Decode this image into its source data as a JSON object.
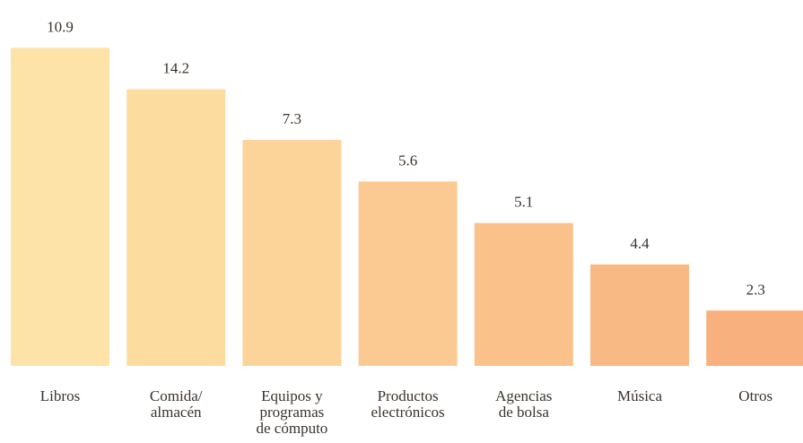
{
  "chart_data": {
    "type": "bar",
    "categories": [
      [
        "Libros"
      ],
      [
        "Comida/",
        "almacén"
      ],
      [
        "Equipos y",
        "programas",
        "de cómputo"
      ],
      [
        "Productos",
        "electrónicos"
      ],
      [
        "Agencias",
        "de bolsa"
      ],
      [
        "Música"
      ],
      [
        "Otros"
      ]
    ],
    "values": [
      10.9,
      14.2,
      7.3,
      5.6,
      5.1,
      4.4,
      2.3
    ],
    "value_labels": [
      "10.9",
      "14.2",
      "7.3",
      "5.6",
      "5.1",
      "4.4",
      "2.3"
    ],
    "bar_colors": [
      "#fde3a7",
      "#fddca0",
      "#fcd399",
      "#fbca92",
      "#fac18b",
      "#f9b984",
      "#f8b07e"
    ],
    "title": "",
    "xlabel": "",
    "ylabel": "",
    "ylim": [
      0,
      15
    ],
    "grid": false,
    "legend": "none"
  }
}
